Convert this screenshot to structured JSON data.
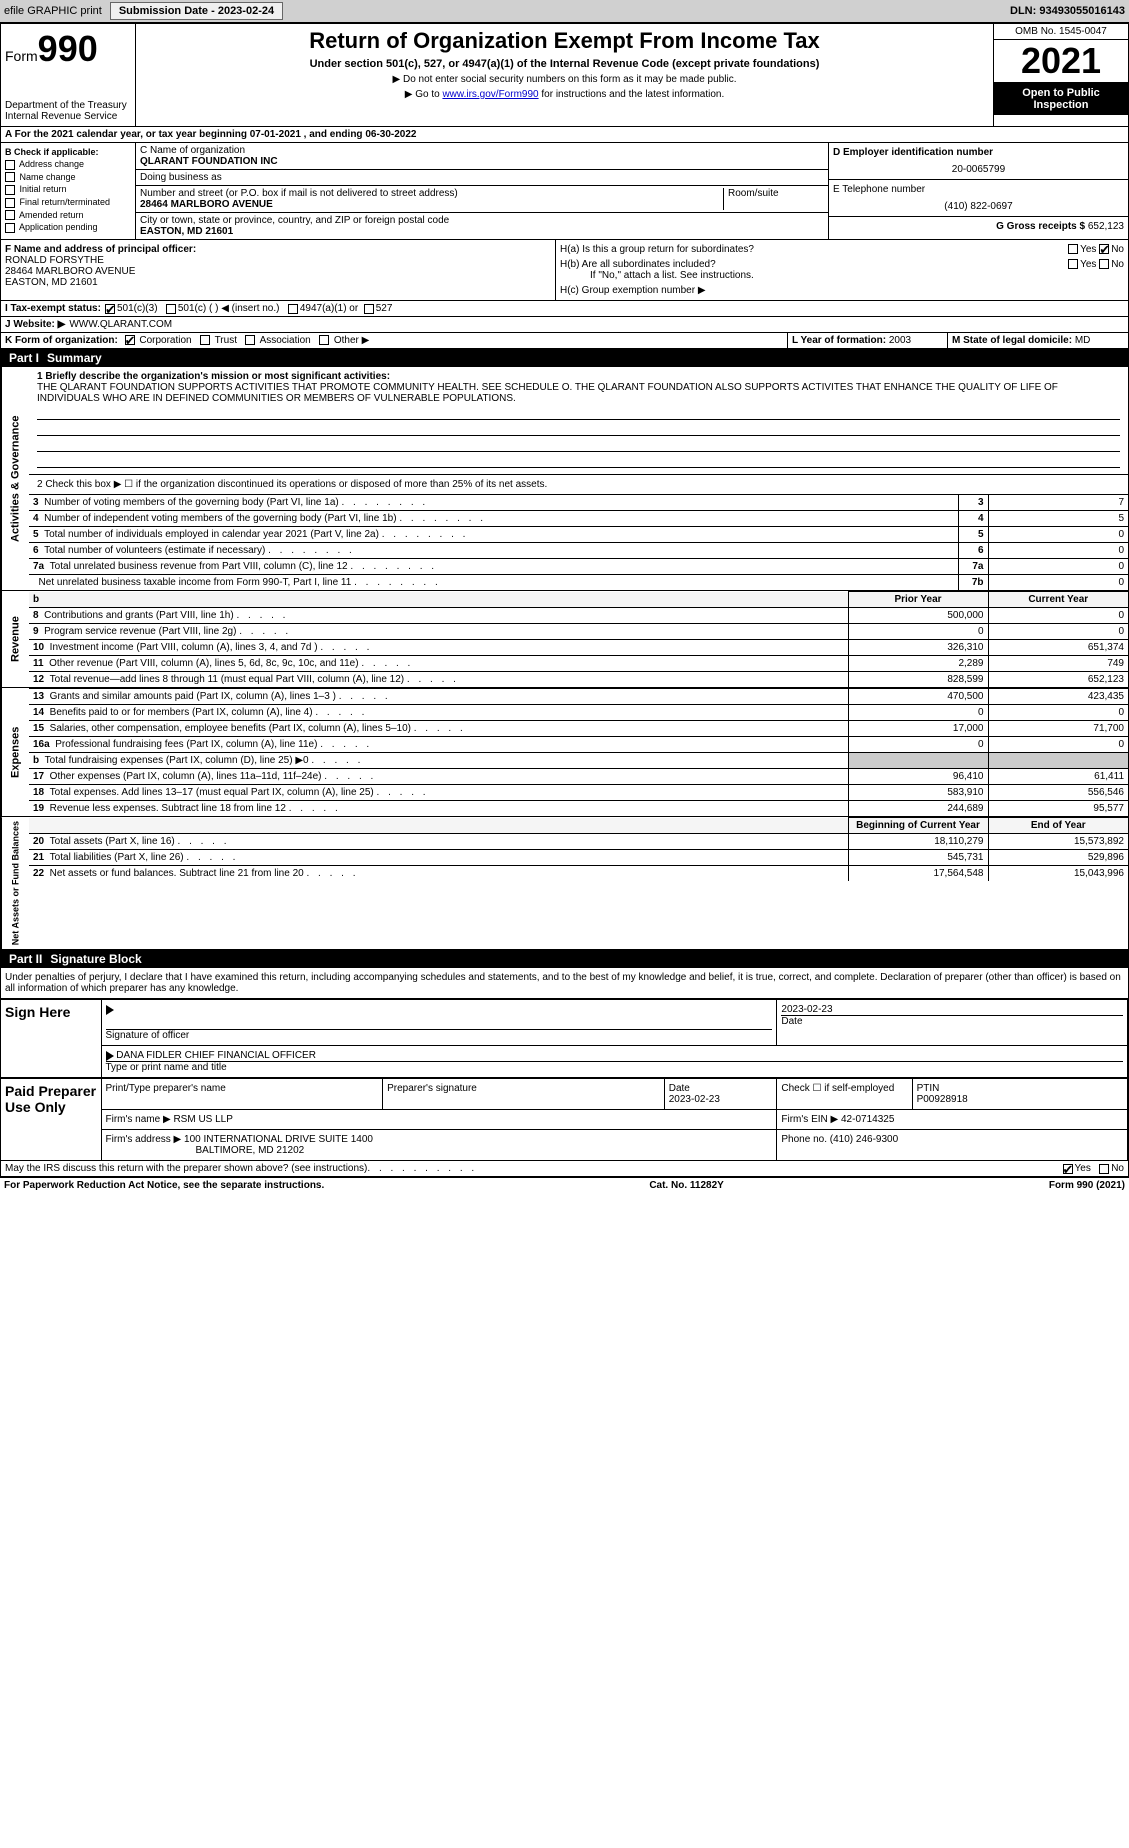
{
  "topbar": {
    "efile": "efile GRAPHIC print",
    "submission_label": "Submission Date - 2023-02-24",
    "dln": "DLN: 93493055016143"
  },
  "header": {
    "form_word": "Form",
    "form_num": "990",
    "title": "Return of Organization Exempt From Income Tax",
    "subtitle": "Under section 501(c), 527, or 4947(a)(1) of the Internal Revenue Code (except private foundations)",
    "note1": "▶ Do not enter social security numbers on this form as it may be made public.",
    "note2_pre": "▶ Go to ",
    "note2_link": "www.irs.gov/Form990",
    "note2_post": " for instructions and the latest information.",
    "dept": "Department of the Treasury",
    "irs": "Internal Revenue Service",
    "omb": "OMB No. 1545-0047",
    "year": "2021",
    "open": "Open to Public Inspection"
  },
  "period": {
    "text_a": "A For the 2021 calendar year, or tax year beginning 07-01-2021    , and ending 06-30-2022"
  },
  "box_b": {
    "title": "B Check if applicable:",
    "items": [
      "Address change",
      "Name change",
      "Initial return",
      "Final return/terminated",
      "Amended return",
      "Application pending"
    ]
  },
  "box_c": {
    "c_label": "C Name of organization",
    "c_val": "QLARANT FOUNDATION INC",
    "dba_label": "Doing business as",
    "dba_val": "",
    "addr_label": "Number and street (or P.O. box if mail is not delivered to street address)",
    "addr_val": "28464 MARLBORO AVENUE",
    "room_label": "Room/suite",
    "city_label": "City or town, state or province, country, and ZIP or foreign postal code",
    "city_val": "EASTON, MD  21601"
  },
  "box_d": {
    "d_label": "D Employer identification number",
    "d_val": "20-0065799",
    "e_label": "E Telephone number",
    "e_val": "(410) 822-0697",
    "g_label": "G Gross receipts $",
    "g_val": "652,123"
  },
  "box_f": {
    "f_label": "F Name and address of principal officer:",
    "f_name": "RONALD FORSYTHE",
    "f_addr1": "28464 MARLBORO AVENUE",
    "f_addr2": "EASTON, MD  21601"
  },
  "box_h": {
    "ha": "H(a)  Is this a group return for subordinates?",
    "hb": "H(b)  Are all subordinates included?",
    "hb_note": "If \"No,\" attach a list. See instructions.",
    "hc": "H(c)  Group exemption number ▶",
    "yes": "Yes",
    "no": "No"
  },
  "row_i": {
    "label": "I  Tax-exempt status:",
    "o1": "501(c)(3)",
    "o2": "501(c) (  ) ◀ (insert no.)",
    "o3": "4947(a)(1) or",
    "o4": "527"
  },
  "row_j": {
    "label": "J  Website: ▶",
    "val": "WWW.QLARANT.COM"
  },
  "row_k": {
    "label": "K Form of organization:",
    "o1": "Corporation",
    "o2": "Trust",
    "o3": "Association",
    "o4": "Other ▶",
    "l_label": "L Year of formation:",
    "l_val": "2003",
    "m_label": "M State of legal domicile:",
    "m_val": "MD"
  },
  "part1": {
    "num": "Part I",
    "title": "Summary"
  },
  "activities": {
    "side": "Activities & Governance",
    "line1_label": "1 Briefly describe the organization's mission or most significant activities:",
    "line1_text": "THE QLARANT FOUNDATION SUPPORTS ACTIVITIES THAT PROMOTE COMMUNITY HEALTH. SEE SCHEDULE O. THE QLARANT FOUNDATION ALSO SUPPORTS ACTIVITES THAT ENHANCE THE QUALITY OF LIFE OF INDIVIDUALS WHO ARE IN DEFINED COMMUNITIES OR MEMBERS OF VULNERABLE POPULATIONS.",
    "line2": "2  Check this box ▶ ☐  if the organization discontinued its operations or disposed of more than 25% of its net assets.",
    "rows": [
      {
        "n": "3",
        "text": "Number of voting members of the governing body (Part VI, line 1a)",
        "box": "3",
        "val": "7"
      },
      {
        "n": "4",
        "text": "Number of independent voting members of the governing body (Part VI, line 1b)",
        "box": "4",
        "val": "5"
      },
      {
        "n": "5",
        "text": "Total number of individuals employed in calendar year 2021 (Part V, line 2a)",
        "box": "5",
        "val": "0"
      },
      {
        "n": "6",
        "text": "Total number of volunteers (estimate if necessary)",
        "box": "6",
        "val": "0"
      },
      {
        "n": "7a",
        "text": "Total unrelated business revenue from Part VIII, column (C), line 12",
        "box": "7a",
        "val": "0"
      },
      {
        "n": "",
        "text": "Net unrelated business taxable income from Form 990-T, Part I, line 11",
        "box": "7b",
        "val": "0"
      }
    ]
  },
  "revenue": {
    "side": "Revenue",
    "hdr_b": "b",
    "hdr_prior": "Prior Year",
    "hdr_current": "Current Year",
    "rows": [
      {
        "n": "8",
        "text": "Contributions and grants (Part VIII, line 1h)",
        "prior": "500,000",
        "cur": "0"
      },
      {
        "n": "9",
        "text": "Program service revenue (Part VIII, line 2g)",
        "prior": "0",
        "cur": "0"
      },
      {
        "n": "10",
        "text": "Investment income (Part VIII, column (A), lines 3, 4, and 7d )",
        "prior": "326,310",
        "cur": "651,374"
      },
      {
        "n": "11",
        "text": "Other revenue (Part VIII, column (A), lines 5, 6d, 8c, 9c, 10c, and 11e)",
        "prior": "2,289",
        "cur": "749"
      },
      {
        "n": "12",
        "text": "Total revenue—add lines 8 through 11 (must equal Part VIII, column (A), line 12)",
        "prior": "828,599",
        "cur": "652,123"
      }
    ]
  },
  "expenses": {
    "side": "Expenses",
    "rows": [
      {
        "n": "13",
        "text": "Grants and similar amounts paid (Part IX, column (A), lines 1–3 )",
        "prior": "470,500",
        "cur": "423,435"
      },
      {
        "n": "14",
        "text": "Benefits paid to or for members (Part IX, column (A), line 4)",
        "prior": "0",
        "cur": "0"
      },
      {
        "n": "15",
        "text": "Salaries, other compensation, employee benefits (Part IX, column (A), lines 5–10)",
        "prior": "17,000",
        "cur": "71,700"
      },
      {
        "n": "16a",
        "text": "Professional fundraising fees (Part IX, column (A), line 11e)",
        "prior": "0",
        "cur": "0"
      },
      {
        "n": "b",
        "text": "Total fundraising expenses (Part IX, column (D), line 25) ▶0",
        "prior": "",
        "cur": "",
        "shaded": true
      },
      {
        "n": "17",
        "text": "Other expenses (Part IX, column (A), lines 11a–11d, 11f–24e)",
        "prior": "96,410",
        "cur": "61,411"
      },
      {
        "n": "18",
        "text": "Total expenses. Add lines 13–17 (must equal Part IX, column (A), line 25)",
        "prior": "583,910",
        "cur": "556,546"
      },
      {
        "n": "19",
        "text": "Revenue less expenses. Subtract line 18 from line 12",
        "prior": "244,689",
        "cur": "95,577"
      }
    ]
  },
  "netassets": {
    "side": "Net Assets or Fund Balances",
    "hdr_begin": "Beginning of Current Year",
    "hdr_end": "End of Year",
    "rows": [
      {
        "n": "20",
        "text": "Total assets (Part X, line 16)",
        "prior": "18,110,279",
        "cur": "15,573,892"
      },
      {
        "n": "21",
        "text": "Total liabilities (Part X, line 26)",
        "prior": "545,731",
        "cur": "529,896"
      },
      {
        "n": "22",
        "text": "Net assets or fund balances. Subtract line 21 from line 20",
        "prior": "17,564,548",
        "cur": "15,043,996"
      }
    ]
  },
  "part2": {
    "num": "Part II",
    "title": "Signature Block",
    "perjury": "Under penalties of perjury, I declare that I have examined this return, including accompanying schedules and statements, and to the best of my knowledge and belief, it is true, correct, and complete. Declaration of preparer (other than officer) is based on all information of which preparer has any knowledge."
  },
  "sign": {
    "side": "Sign Here",
    "sig_label": "Signature of officer",
    "date": "2023-02-23",
    "date_label": "Date",
    "name": "DANA FIDLER  CHIEF FINANCIAL OFFICER",
    "name_label": "Type or print name and title"
  },
  "preparer": {
    "side": "Paid Preparer Use Only",
    "print_label": "Print/Type preparer's name",
    "sig_label": "Preparer's signature",
    "date_label": "Date",
    "date": "2023-02-23",
    "check_label": "Check ☐ if self-employed",
    "ptin_label": "PTIN",
    "ptin": "P00928918",
    "firm_name_label": "Firm's name   ▶",
    "firm_name": "RSM US LLP",
    "firm_ein_label": "Firm's EIN ▶",
    "firm_ein": "42-0714325",
    "firm_addr_label": "Firm's address ▶",
    "firm_addr1": "100 INTERNATIONAL DRIVE SUITE 1400",
    "firm_addr2": "BALTIMORE, MD  21202",
    "phone_label": "Phone no.",
    "phone": "(410) 246-9300"
  },
  "discuss": {
    "text": "May the IRS discuss this return with the preparer shown above? (see instructions)",
    "yes": "Yes",
    "no": "No"
  },
  "footer": {
    "left": "For Paperwork Reduction Act Notice, see the separate instructions.",
    "mid": "Cat. No. 11282Y",
    "right": "Form 990 (2021)"
  }
}
